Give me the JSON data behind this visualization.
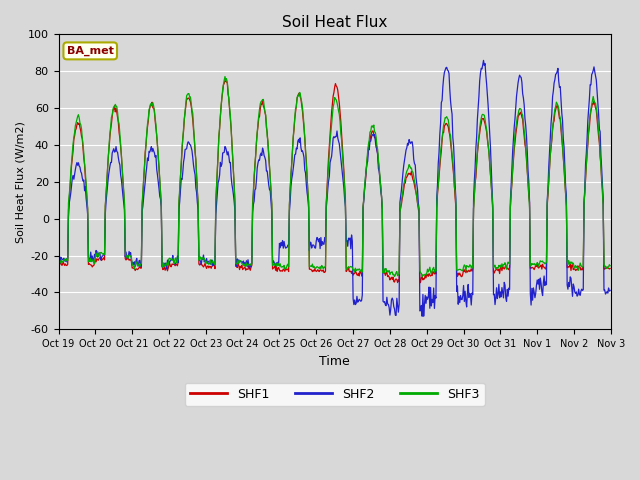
{
  "title": "Soil Heat Flux",
  "xlabel": "Time",
  "ylabel": "Soil Heat Flux (W/m2)",
  "ylim": [
    -60,
    100
  ],
  "yticks": [
    -60,
    -40,
    -20,
    0,
    20,
    40,
    60,
    80,
    100
  ],
  "xtick_labels": [
    "Oct 19",
    "Oct 20",
    "Oct 21",
    "Oct 22",
    "Oct 23",
    "Oct 24",
    "Oct 25",
    "Oct 26",
    "Oct 27",
    "Oct 28",
    "Oct 29",
    "Oct 30",
    "Oct 31",
    "Nov 1",
    "Nov 2",
    "Nov 3"
  ],
  "legend_labels": [
    "SHF1",
    "SHF2",
    "SHF3"
  ],
  "legend_colors": [
    "#cc0000",
    "#2222cc",
    "#00aa00"
  ],
  "annotation_text": "BA_met",
  "annotation_color": "#8b0000",
  "annotation_bg": "#fffff0",
  "annotation_border": "#aaaa00",
  "plot_bg_color": "#d8d8d8",
  "fig_bg_color": "#d8d8d8",
  "grid_color": "#ffffff",
  "n_days": 15,
  "seed": 42
}
